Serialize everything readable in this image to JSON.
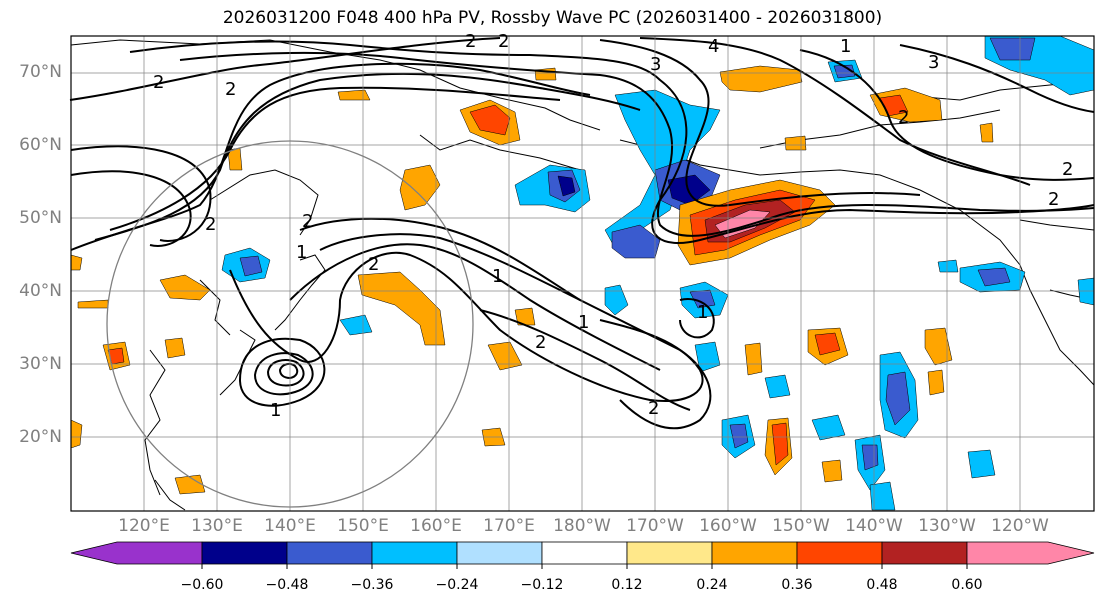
{
  "title": "2026031200 F048 400 hPa PV, Rossby Wave PC (2026031400 - 2026031800)",
  "map": {
    "lat_labels": [
      "70°N",
      "60°N",
      "50°N",
      "40°N",
      "30°N",
      "20°N"
    ],
    "lon_labels": [
      "120°E",
      "130°E",
      "140°E",
      "150°E",
      "160°E",
      "170°E",
      "180°W",
      "170°W",
      "160°W",
      "150°W",
      "140°W",
      "130°W",
      "120°W"
    ],
    "contour_labels": [
      "2",
      "2",
      "2",
      "2",
      "2",
      "2",
      "2",
      "1",
      "1",
      "1",
      "2",
      "2",
      "3",
      "4",
      "3",
      "2",
      "2",
      "1",
      "1",
      "1",
      "2"
    ]
  },
  "colorbar": {
    "colors": [
      "#9932cc",
      "#00008b",
      "#3a5bcf",
      "#00bfff",
      "#b0e0ff",
      "#ffffff",
      "#ffe88a",
      "#ffa500",
      "#ff4500",
      "#b22222",
      "#ff86a8"
    ],
    "ticks": [
      "−0.60",
      "−0.48",
      "−0.36",
      "−0.24",
      "−0.12",
      "0.12",
      "0.24",
      "0.36",
      "0.48",
      "0.60"
    ]
  }
}
